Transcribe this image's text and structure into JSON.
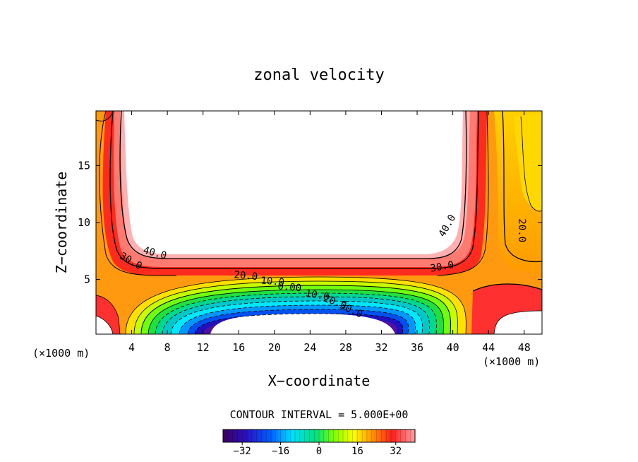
{
  "chart_data": {
    "type": "heatmap",
    "title": "zonal velocity",
    "xlabel": "X−coordinate",
    "ylabel": "Z−coordinate",
    "x_unit_left": "(×1000 m)",
    "x_unit_right": "(×1000 m)",
    "xlim": [
      0,
      50
    ],
    "ylim": [
      0.2,
      19.8
    ],
    "x_ticks": [
      4,
      8,
      12,
      16,
      20,
      24,
      28,
      32,
      36,
      40,
      44,
      48
    ],
    "y_ticks": [
      5,
      10,
      15
    ],
    "grid": false,
    "contour_interval_text": "CONTOUR INTERVAL = 5.000E+00",
    "colorbar": {
      "range": [
        -40,
        40
      ],
      "tick_values": [
        -32,
        -16,
        0,
        16,
        32
      ],
      "tick_labels": [
        "−32",
        "−16",
        "0",
        "16",
        "32"
      ]
    },
    "contour_labels": [
      {
        "text": "40.0",
        "x": 6.6,
        "z": 7.3,
        "angle": 15
      },
      {
        "text": "30.0",
        "x": 3.9,
        "z": 6.6,
        "angle": 30
      },
      {
        "text": "20.0",
        "x": 16.8,
        "z": 5.3,
        "angle": 5
      },
      {
        "text": "10.0",
        "x": 19.8,
        "z": 4.8,
        "angle": 5
      },
      {
        "text": "0.00",
        "x": 21.7,
        "z": 4.3,
        "angle": 5
      },
      {
        "text": "10.0",
        "x": 24.8,
        "z": 3.6,
        "angle": 10
      },
      {
        "text": "20.0",
        "x": 26.8,
        "z": 3.0,
        "angle": 20
      },
      {
        "text": "30.0",
        "x": 28.6,
        "z": 2.3,
        "angle": 25
      },
      {
        "text": "40.0",
        "x": 39.4,
        "z": 9.7,
        "angle": -60
      },
      {
        "text": "30.0",
        "x": 38.8,
        "z": 6.1,
        "angle": -10
      },
      {
        "text": "20.0",
        "x": 47.7,
        "z": 9.3,
        "angle": 90
      }
    ]
  }
}
